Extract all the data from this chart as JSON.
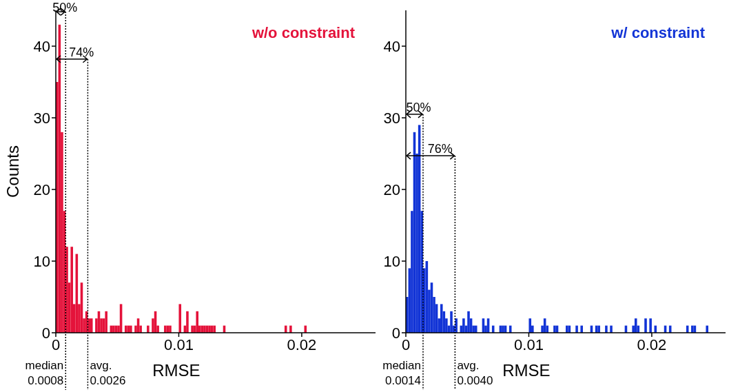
{
  "chart_data": [
    {
      "type": "histogram",
      "title": "w/o constraint",
      "xlabel": "RMSE",
      "ylabel": "Counts",
      "color": "#e4123a",
      "bins": [
        0,
        0.0002,
        0.0004,
        0.0006,
        0.0008,
        0.001,
        0.0012,
        0.0014,
        0.0016,
        0.0018,
        0.002,
        0.0022,
        0.0024,
        0.0026,
        0.0028,
        0.003,
        0.0032,
        0.0034,
        0.0036,
        0.0038,
        0.004,
        0.0042,
        0.0044,
        0.0046,
        0.0048,
        0.005,
        0.0052,
        0.0054,
        0.0056,
        0.0058,
        0.006,
        0.0062,
        0.0064,
        0.0066,
        0.0068,
        0.007,
        0.0072,
        0.0074,
        0.0076,
        0.0078,
        0.008,
        0.0082,
        0.0084,
        0.0086,
        0.0088,
        0.009,
        0.0092,
        0.0094,
        0.0096,
        0.0098,
        0.01,
        0.0102,
        0.0104,
        0.0106,
        0.0108,
        0.011,
        0.0112,
        0.0114,
        0.0116,
        0.0118,
        0.012,
        0.0122,
        0.0124,
        0.0126,
        0.0128,
        0.013,
        0.0132,
        0.0134,
        0.0136,
        0.0138,
        0.014,
        0.0142,
        0.0144,
        0.0146,
        0.0148,
        0.015,
        0.0152,
        0.0154,
        0.0156,
        0.0158,
        0.016,
        0.0162,
        0.0164,
        0.0166,
        0.0168,
        0.017,
        0.0172,
        0.0174,
        0.0176,
        0.0178,
        0.018,
        0.0182,
        0.0184,
        0.0186,
        0.0188,
        0.019,
        0.0192,
        0.0194,
        0.0196,
        0.0198,
        0.02,
        0.0202,
        0.0204
      ],
      "values": [
        35,
        43,
        28,
        17,
        12,
        7,
        12,
        4,
        11,
        4,
        7,
        2,
        3,
        2,
        2,
        0,
        2,
        3,
        2,
        2,
        3,
        0,
        1,
        1,
        1,
        1,
        4,
        0,
        1,
        1,
        1,
        0,
        1,
        2,
        1,
        0,
        0,
        1,
        0,
        2,
        3,
        1,
        0,
        0,
        1,
        1,
        1,
        0,
        0,
        0,
        4,
        0,
        1,
        3,
        0,
        1,
        1,
        3,
        1,
        1,
        1,
        1,
        1,
        1,
        1,
        0,
        0,
        0,
        1,
        0,
        0,
        0,
        0,
        0,
        0,
        0,
        0,
        0,
        0,
        0,
        0,
        0,
        0,
        0,
        0,
        0,
        0,
        0,
        0,
        0,
        0,
        0,
        0,
        1,
        0,
        1,
        0,
        0,
        0,
        0,
        0,
        1
      ],
      "xlim": [
        0,
        0.026
      ],
      "ylim": [
        0,
        45
      ],
      "xticks": [
        0,
        0.01,
        0.02
      ],
      "yticks": [
        0,
        10,
        20,
        30,
        40
      ],
      "ref_lines": [
        {
          "axis": "x",
          "value": 0.0008,
          "label": "median\n0.0008",
          "line_style": "dotted"
        },
        {
          "axis": "x",
          "value": 0.0026,
          "label": "avg.\n0.0026",
          "line_style": "dotted"
        }
      ],
      "annotations": [
        {
          "text": "50%",
          "x": 0.0008,
          "y": 44.8
        },
        {
          "text": "74%",
          "x": 0.0026,
          "y": 38.2
        }
      ]
    },
    {
      "type": "histogram",
      "title": "w/ constraint",
      "xlabel": "RMSE",
      "color": "#1234d6",
      "bins": [
        0,
        0.0002,
        0.0004,
        0.0006,
        0.0008,
        0.001,
        0.0012,
        0.0014,
        0.0016,
        0.0018,
        0.002,
        0.0022,
        0.0024,
        0.0026,
        0.0028,
        0.003,
        0.0032,
        0.0034,
        0.0036,
        0.0038,
        0.004,
        0.0042,
        0.0044,
        0.0046,
        0.0048,
        0.005,
        0.0052,
        0.0054,
        0.0056,
        0.0058,
        0.006,
        0.0062,
        0.0064,
        0.0066,
        0.0068,
        0.007,
        0.0072,
        0.0074,
        0.0076,
        0.0078,
        0.008,
        0.0082,
        0.0084,
        0.0086,
        0.0088,
        0.009,
        0.0092,
        0.0094,
        0.0096,
        0.0098,
        0.01,
        0.0102,
        0.0104,
        0.0106,
        0.0108,
        0.011,
        0.0112,
        0.0114,
        0.0116,
        0.0118,
        0.012,
        0.0122,
        0.0124,
        0.0126,
        0.0128,
        0.013,
        0.0132,
        0.0134,
        0.0136,
        0.0138,
        0.014,
        0.0142,
        0.0144,
        0.0146,
        0.0148,
        0.015,
        0.0152,
        0.0154,
        0.0156,
        0.0158,
        0.016,
        0.0162,
        0.0164,
        0.0166,
        0.0168,
        0.017,
        0.0172,
        0.0174,
        0.0176,
        0.0178,
        0.018,
        0.0182,
        0.0184,
        0.0186,
        0.0188,
        0.019,
        0.0192,
        0.0194,
        0.0196,
        0.0198,
        0.02,
        0.0202,
        0.0204,
        0.0206,
        0.0208,
        0.021,
        0.0212,
        0.0214,
        0.0216,
        0.0218,
        0.022,
        0.0222,
        0.0224,
        0.0226,
        0.0228,
        0.023,
        0.0232,
        0.0234,
        0.0236,
        0.0238,
        0.024,
        0.0242,
        0.0244,
        0.0246
      ],
      "values": [
        5,
        9,
        17,
        28,
        25,
        29,
        17,
        9,
        10,
        6,
        7,
        5,
        4,
        2,
        4,
        3,
        2,
        1,
        3,
        1,
        2,
        0,
        1,
        2,
        1,
        3,
        2,
        1,
        1,
        0,
        0,
        2,
        1,
        2,
        0,
        1,
        0,
        0,
        1,
        1,
        1,
        0,
        1,
        0,
        0,
        0,
        0,
        0,
        0,
        0,
        2,
        1,
        0,
        0,
        0,
        1,
        2,
        1,
        0,
        0,
        1,
        1,
        0,
        0,
        0,
        1,
        1,
        0,
        0,
        1,
        0,
        1,
        0,
        0,
        0,
        1,
        0,
        1,
        1,
        0,
        0,
        1,
        0,
        1,
        0,
        0,
        0,
        0,
        0,
        1,
        0,
        0,
        1,
        2,
        1,
        0,
        0,
        2,
        0,
        2,
        0,
        1,
        0,
        0,
        0,
        1,
        0,
        1,
        0,
        0,
        0,
        0,
        0,
        0,
        1,
        0,
        1,
        1,
        0,
        0,
        0,
        0,
        1
      ],
      "xlim": [
        0,
        0.026
      ],
      "ylim": [
        0,
        45
      ],
      "xticks": [
        0,
        0.01,
        0.02
      ],
      "yticks": [
        0,
        10,
        20,
        30,
        40
      ],
      "ref_lines": [
        {
          "axis": "x",
          "value": 0.0014,
          "label": "median\n0.0014",
          "line_style": "dotted"
        },
        {
          "axis": "x",
          "value": 0.004,
          "label": "avg.\n0.0040",
          "line_style": "dotted"
        }
      ],
      "annotations": [
        {
          "text": "50%",
          "x": 0.0014,
          "y": 30.5
        },
        {
          "text": "76%",
          "x": 0.004,
          "y": 24.7
        }
      ]
    }
  ]
}
